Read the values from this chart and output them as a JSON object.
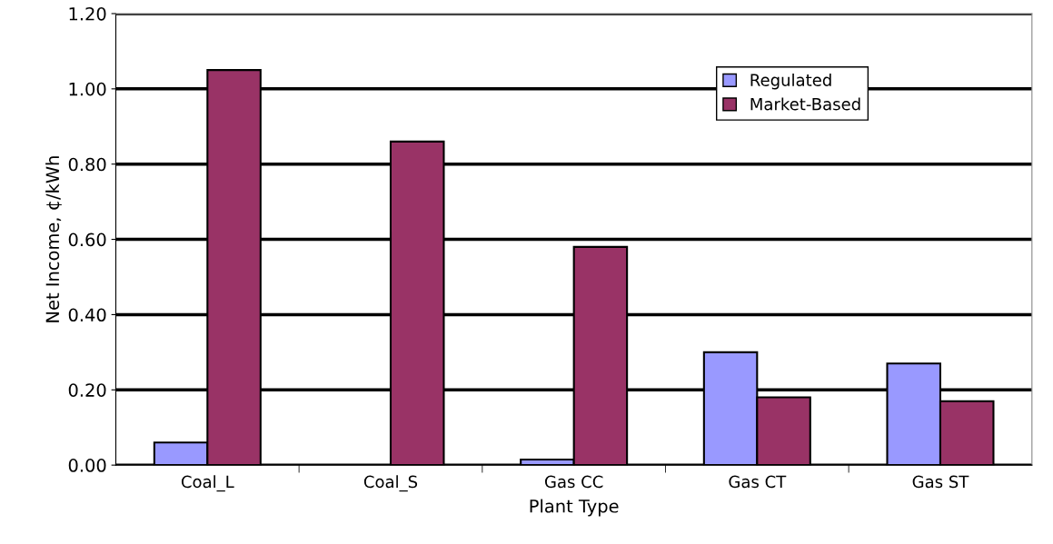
{
  "chart_data": {
    "type": "bar",
    "xlabel": "Plant Type",
    "ylabel": "Net Income, ¢/kWh",
    "categories": [
      "Coal_L",
      "Coal_S",
      "Gas CC",
      "Gas CT",
      "Gas ST"
    ],
    "series": [
      {
        "name": "Regulated",
        "color": "#9999ff",
        "values": [
          0.06,
          null,
          0.015,
          0.3,
          0.27
        ]
      },
      {
        "name": "Market-Based",
        "color": "#993366",
        "values": [
          1.05,
          0.86,
          0.58,
          0.18,
          0.17
        ]
      }
    ],
    "ylim": [
      0,
      1.2
    ],
    "yticks": [
      {
        "value": 0,
        "label": "0.00"
      },
      {
        "value": 0.2,
        "label": "0.20"
      },
      {
        "value": 0.4,
        "label": "0.40"
      },
      {
        "value": 0.6,
        "label": "0.60"
      },
      {
        "value": 0.8,
        "label": "0.80"
      },
      {
        "value": 1.0,
        "label": "1.00"
      },
      {
        "value": 1.2,
        "label": "1.20"
      }
    ],
    "grid": "y",
    "legend": "top right"
  }
}
